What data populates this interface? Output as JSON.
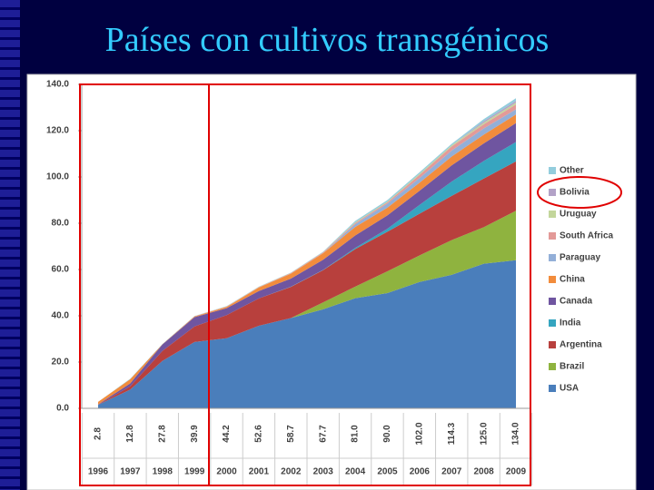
{
  "title": "Países con cultivos transgénicos",
  "chart_data": {
    "type": "stacked-area",
    "categories": [
      "1996",
      "1997",
      "1998",
      "1999",
      "2000",
      "2001",
      "2002",
      "2003",
      "2004",
      "2005",
      "2006",
      "2007",
      "2008",
      "2009"
    ],
    "total_labels": [
      "2.8",
      "12.8",
      "27.8",
      "39.9",
      "44.2",
      "52.6",
      "58.7",
      "67.7",
      "81.0",
      "90.0",
      "102.0",
      "114.3",
      "125.0",
      "134.0"
    ],
    "ylim": [
      0,
      140
    ],
    "yticks": [
      {
        "value": 0,
        "label": "0.0"
      },
      {
        "value": 20,
        "label": "20.0"
      },
      {
        "value": 40,
        "label": "40.0"
      },
      {
        "value": 60,
        "label": "60.0"
      },
      {
        "value": 80,
        "label": "80.0"
      },
      {
        "value": 100,
        "label": "100.0"
      },
      {
        "value": 120,
        "label": "120.0"
      },
      {
        "value": 140,
        "label": "140.0"
      }
    ],
    "series": [
      {
        "name": "USA",
        "color": "#4a7ebb",
        "values": [
          1.5,
          8.1,
          20.5,
          28.7,
          30.3,
          35.7,
          39.0,
          42.8,
          47.6,
          49.8,
          54.6,
          57.7,
          62.5,
          64.0
        ]
      },
      {
        "name": "Brazil",
        "color": "#8fb33f",
        "values": [
          0,
          0,
          0,
          0,
          0,
          0,
          0,
          3.0,
          5.0,
          9.4,
          11.5,
          15.0,
          15.8,
          21.4
        ]
      },
      {
        "name": "Argentina",
        "color": "#b8403d",
        "values": [
          0.1,
          1.4,
          4.3,
          6.7,
          10.0,
          11.8,
          13.5,
          13.9,
          16.2,
          17.1,
          18.0,
          19.1,
          21.0,
          21.3
        ]
      },
      {
        "name": "India",
        "color": "#35a5c0",
        "values": [
          0,
          0,
          0,
          0,
          0,
          0,
          0.1,
          0.1,
          0.5,
          1.3,
          3.8,
          6.2,
          7.6,
          8.4
        ]
      },
      {
        "name": "Canada",
        "color": "#6f55a0",
        "values": [
          0.1,
          1.3,
          2.8,
          4.0,
          3.0,
          3.2,
          3.5,
          4.4,
          5.4,
          5.8,
          6.1,
          7.0,
          7.6,
          8.2
        ]
      },
      {
        "name": "China",
        "color": "#f28c3c",
        "values": [
          1.1,
          1.8,
          0.1,
          0.3,
          0.5,
          1.5,
          2.1,
          2.8,
          3.7,
          3.3,
          3.5,
          3.8,
          3.8,
          3.7
        ]
      },
      {
        "name": "Paraguay",
        "color": "#93afd8",
        "values": [
          0,
          0,
          0,
          0,
          0,
          0,
          0,
          0,
          1.2,
          1.8,
          2.0,
          2.6,
          2.7,
          2.2
        ]
      },
      {
        "name": "South Africa",
        "color": "#e39a98",
        "values": [
          0,
          0,
          0,
          0.1,
          0.2,
          0.2,
          0.3,
          0.4,
          0.5,
          0.5,
          1.4,
          1.8,
          1.8,
          2.1
        ]
      },
      {
        "name": "Uruguay",
        "color": "#c3d69b",
        "values": [
          0,
          0,
          0,
          0,
          0.1,
          0.1,
          0.1,
          0.1,
          0.3,
          0.3,
          0.4,
          0.5,
          0.7,
          0.8
        ]
      },
      {
        "name": "Bolivia",
        "color": "#b3a2c7",
        "values": [
          0,
          0,
          0,
          0,
          0,
          0,
          0,
          0,
          0,
          0,
          0,
          0,
          0.6,
          0.8
        ]
      },
      {
        "name": "Other",
        "color": "#93cddd",
        "values": [
          0,
          0.2,
          0.1,
          0.1,
          0.1,
          0.1,
          0.1,
          0.2,
          0.6,
          0.7,
          0.7,
          0.6,
          0.9,
          1.1
        ]
      }
    ],
    "grid": false
  }
}
